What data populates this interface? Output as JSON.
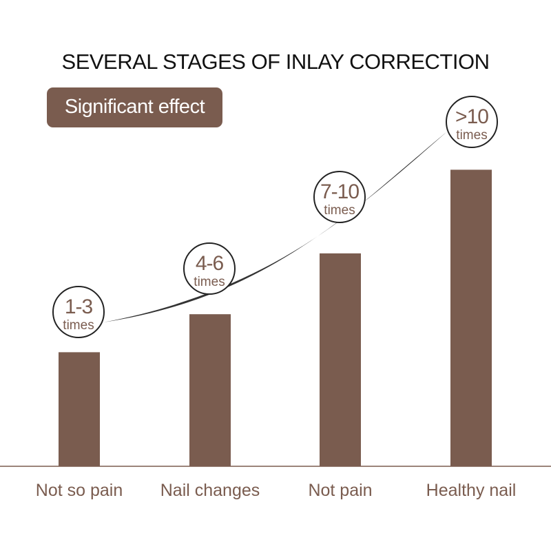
{
  "chart_data": {
    "type": "bar",
    "title": "SEVERAL STAGES OF INLAY CORRECTION",
    "badge": "Significant effect",
    "categories": [
      "Not so pain",
      "Nail changes",
      "Not pain",
      "Healthy nail"
    ],
    "values": [
      1.5,
      2.0,
      2.8,
      3.9
    ],
    "ylim": [
      0,
      4.5
    ],
    "annotations": [
      {
        "top": "1-3",
        "bottom": "times"
      },
      {
        "top": "4-6",
        "bottom": "times"
      },
      {
        "top": "7-10",
        "bottom": "times"
      },
      {
        "top": ">10",
        "bottom": "times"
      }
    ],
    "grid": false,
    "colors": {
      "bar": "#7a5c4f",
      "curve": "#333333",
      "text": "#7a5c4f"
    }
  }
}
